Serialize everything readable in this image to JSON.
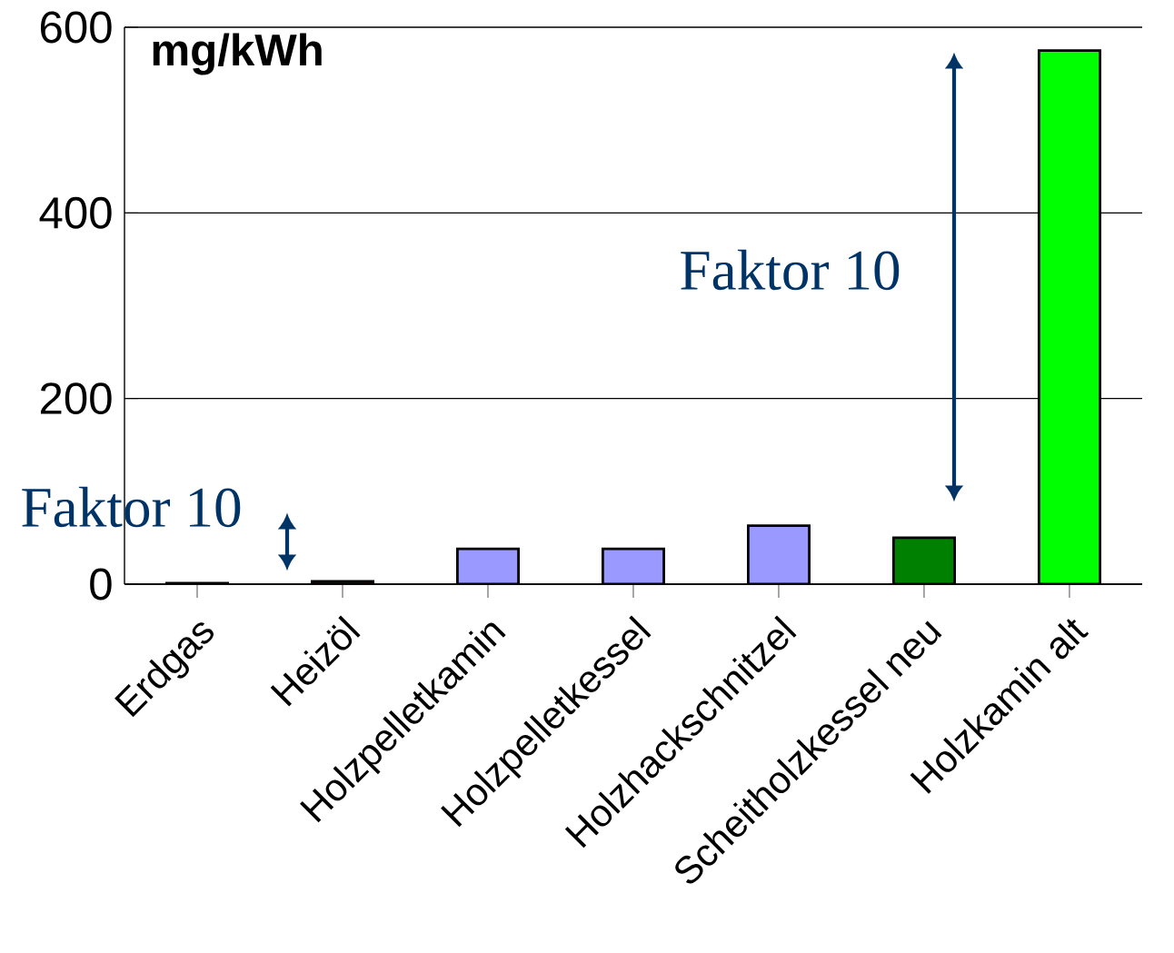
{
  "chart_data": {
    "type": "bar",
    "ylabel": "mg/kWh",
    "categories": [
      "Erdgas",
      "Heizöl",
      "Holzpelletkamin",
      "Holzpelletkessel",
      "Holzhackschnitzel",
      "Scheitholzkessel neu",
      "Holzkamin alt"
    ],
    "values": [
      1,
      3,
      38,
      38,
      63,
      50,
      575
    ],
    "colors": [
      "#9999ff",
      "#800000",
      "#9999ff",
      "#9999ff",
      "#9999ff",
      "#008000",
      "#00ff00"
    ],
    "ylim": [
      0,
      600
    ],
    "yticks": [
      0,
      200,
      400,
      600
    ],
    "grid": "y",
    "annotations": [
      "Faktor 10",
      "Faktor 10"
    ]
  }
}
